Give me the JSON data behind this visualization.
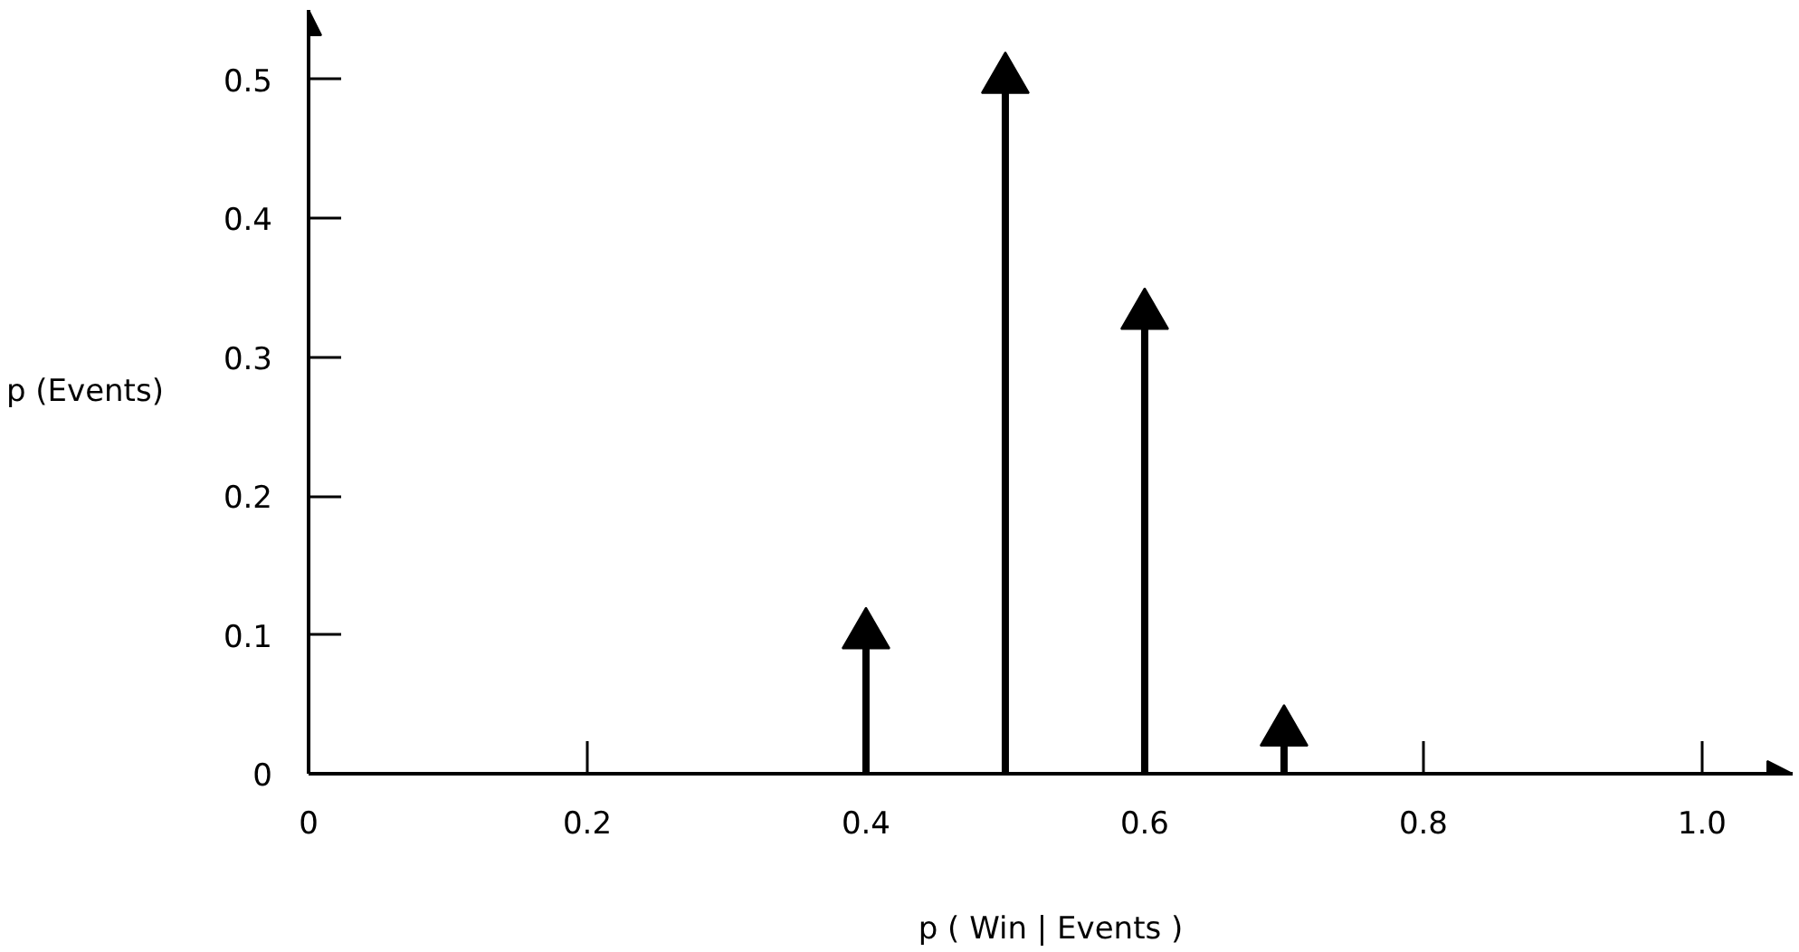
{
  "chart_data": {
    "type": "lollipop",
    "xlabel": "p ( Win | Events )",
    "ylabel": "p (Events)",
    "x": [
      0.4,
      0.5,
      0.6,
      0.7
    ],
    "values": [
      0.1,
      0.5,
      0.33,
      0.03
    ],
    "color": "#000000",
    "marker": "triangle",
    "xlim": [
      0,
      1.065
    ],
    "ylim": [
      0,
      0.55
    ],
    "xticks": [
      0,
      0.2,
      0.4,
      0.6,
      0.8,
      {
        "value": 1.0,
        "label": "1.0"
      }
    ],
    "yticks": [
      0,
      0.1,
      0.2,
      0.3,
      0.4,
      0.5
    ],
    "grid": false
  }
}
